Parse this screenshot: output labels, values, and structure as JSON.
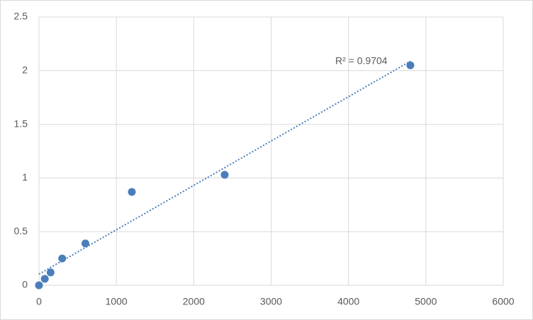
{
  "chart_data": {
    "type": "scatter",
    "annotation": "R² = 0.9704",
    "series": [
      {
        "color": "#4a7ebb",
        "x": [
          0,
          75,
          150,
          300,
          600,
          1200,
          2400,
          4800
        ],
        "values": [
          0,
          0.06,
          0.12,
          0.25,
          0.39,
          0.87,
          1.03,
          2.05
        ]
      }
    ],
    "trendline": "linear",
    "xlim": [
      0,
      6000
    ],
    "xticks": [
      0,
      1000,
      2000,
      3000,
      4000,
      5000,
      6000
    ],
    "ylim": [
      0,
      2.5
    ],
    "yticks": [
      0,
      0.5,
      1,
      1.5,
      2,
      2.5
    ],
    "grid": true
  }
}
